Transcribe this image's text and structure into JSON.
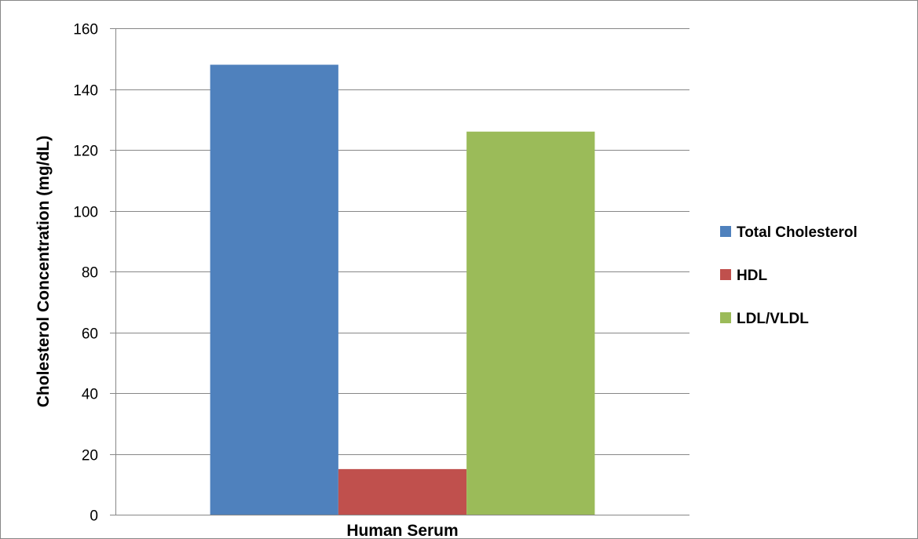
{
  "chart_data": {
    "type": "bar",
    "categories": [
      "Human Serum"
    ],
    "series": [
      {
        "name": "Total Cholesterol",
        "values": [
          148
        ],
        "color": "#4F81BD"
      },
      {
        "name": "HDL",
        "values": [
          15
        ],
        "color": "#C0504D"
      },
      {
        "name": "LDL/VLDL",
        "values": [
          126
        ],
        "color": "#9BBB59"
      }
    ],
    "title": "",
    "xlabel": "",
    "ylabel": "Cholesterol Concentration (mg/dL)",
    "ylim": [
      0,
      160
    ],
    "yticks": [
      0,
      20,
      40,
      60,
      80,
      100,
      120,
      140,
      160
    ],
    "grid": true,
    "legend_position": "right"
  }
}
